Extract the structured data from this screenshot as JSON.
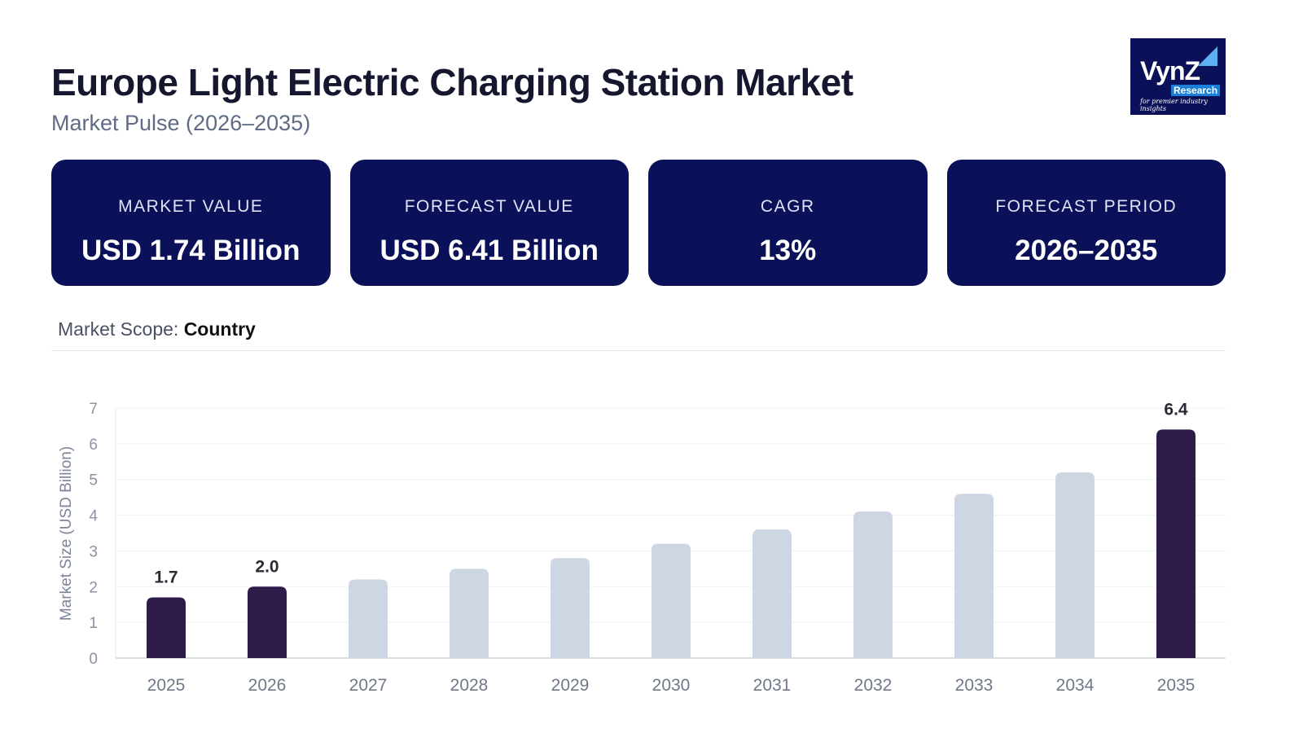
{
  "header": {
    "title": "Europe Light Electric Charging Station Market",
    "subtitle": "Market Pulse (2026–2035)"
  },
  "logo": {
    "text": "VynZ",
    "badge": "Research",
    "tagline": "for premier industry insights"
  },
  "cards": [
    {
      "label": "MARKET VALUE",
      "value": "USD 1.74 Billion"
    },
    {
      "label": "FORECAST VALUE",
      "value": "USD 6.41 Billion"
    },
    {
      "label": "CAGR",
      "value": "13%"
    },
    {
      "label": "FORECAST PERIOD",
      "value": "2026–2035"
    }
  ],
  "scope": {
    "label": "Market Scope: ",
    "value": "Country"
  },
  "colors": {
    "card_bg": "#0b1158",
    "highlight_bar": "#2d1b4a",
    "bar": "#cdd6e2"
  },
  "chart_data": {
    "type": "bar",
    "title": "",
    "xlabel": "",
    "ylabel": "Market Size (USD Billion)",
    "ylim": [
      0,
      7
    ],
    "yticks": [
      0,
      1,
      2,
      3,
      4,
      5,
      6,
      7
    ],
    "grid": true,
    "categories": [
      "2025",
      "2026",
      "2027",
      "2028",
      "2029",
      "2030",
      "2031",
      "2032",
      "2033",
      "2034",
      "2035"
    ],
    "values": [
      1.7,
      2.0,
      2.2,
      2.5,
      2.8,
      3.2,
      3.6,
      4.1,
      4.6,
      5.2,
      6.4
    ],
    "highlighted": [
      "2025",
      "2026",
      "2035"
    ],
    "data_labels": {
      "2025": "1.7",
      "2026": "2.0",
      "2035": "6.4"
    }
  }
}
